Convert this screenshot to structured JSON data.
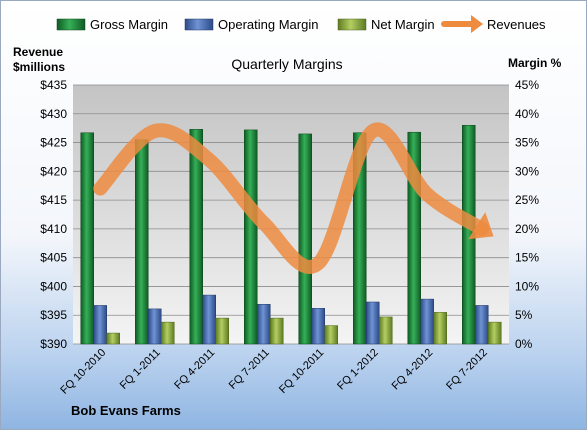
{
  "chart_data": {
    "type": "bar",
    "title": "Quarterly Margins",
    "footer": "Bob Evans Farms",
    "y_left_label": [
      "Revenue",
      "$millions"
    ],
    "y_right_label": "Margin %",
    "categories": [
      "FQ 10-2010",
      "FQ 1-2011",
      "FQ 4-2011",
      "FQ 7-2011",
      "FQ 10-2011",
      "FQ 1-2012",
      "FQ 4-2012",
      "FQ 7-2012"
    ],
    "ylim_left": [
      390,
      435
    ],
    "ylim_right": [
      0,
      45
    ],
    "left_ticks": [
      "$390",
      "$395",
      "$400",
      "$405",
      "$410",
      "$415",
      "$420",
      "$425",
      "$430",
      "$435"
    ],
    "right_ticks": [
      "0%",
      "5%",
      "10%",
      "15%",
      "20%",
      "25%",
      "30%",
      "35%",
      "40%",
      "45%"
    ],
    "grid": true,
    "legend_position": "top",
    "series": [
      {
        "name": "Gross Margin",
        "kind": "bar",
        "axis": "right",
        "color": "#1f8a3c",
        "values": [
          36.7,
          35.5,
          37.3,
          37.2,
          36.5,
          36.7,
          36.8,
          38.0
        ]
      },
      {
        "name": "Operating Margin",
        "kind": "bar",
        "axis": "right",
        "color": "#4a6fb5",
        "values": [
          6.7,
          6.1,
          8.5,
          6.9,
          6.2,
          7.3,
          7.8,
          6.7
        ]
      },
      {
        "name": "Net Margin",
        "kind": "bar",
        "axis": "right",
        "color": "#8fb040",
        "values": [
          1.9,
          3.8,
          4.5,
          4.5,
          3.2,
          4.7,
          5.5,
          3.8
        ]
      },
      {
        "name": "Revenues",
        "kind": "line",
        "axis": "left",
        "color": "#ed8b3f",
        "values": [
          417,
          427,
          422,
          411,
          404,
          427,
          416,
          410
        ]
      }
    ]
  }
}
